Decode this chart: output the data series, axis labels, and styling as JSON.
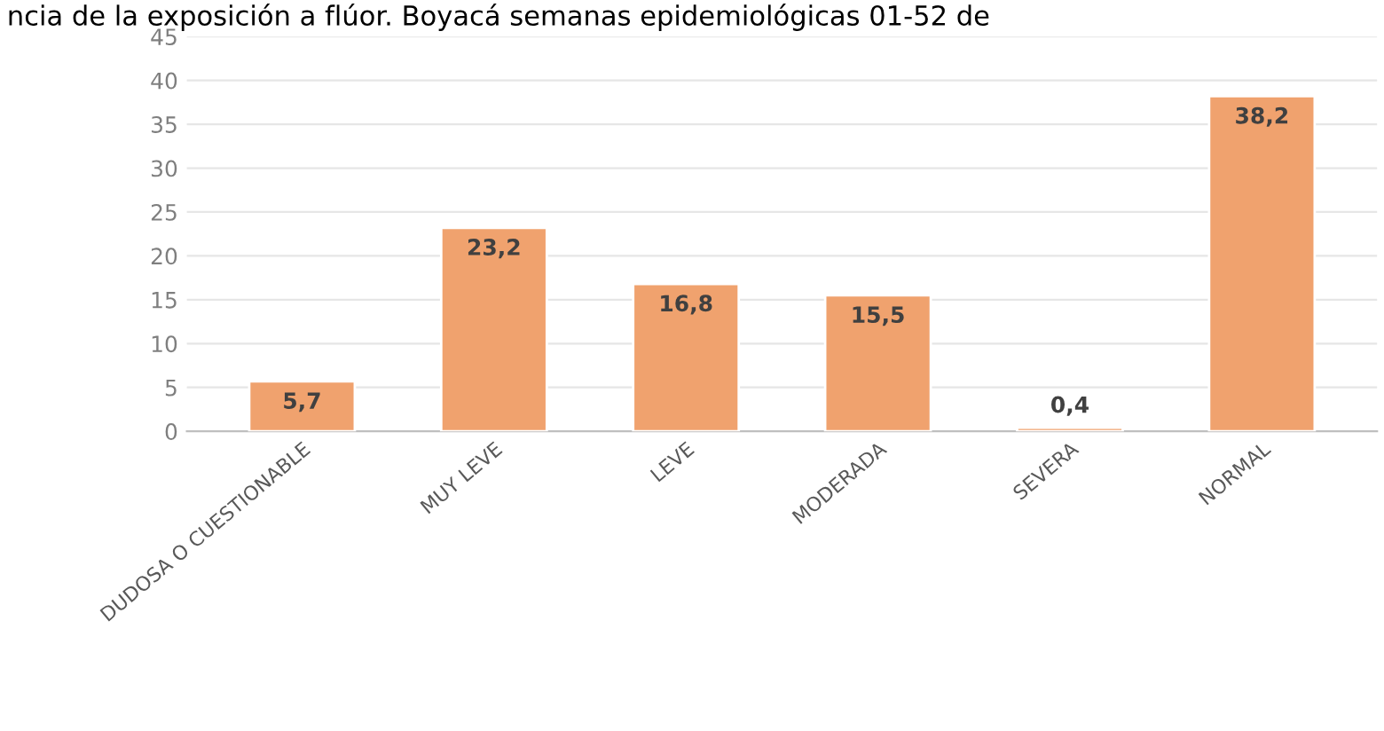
{
  "chart_data": {
    "type": "bar",
    "title": "ncia de la exposición a flúor. Boyacá semanas epidemiológicas 01-52 de",
    "categories": [
      "DUDOSA O CUESTIONABLE",
      "MUY LEVE",
      "LEVE",
      "MODERADA",
      "SEVERA",
      "NORMAL"
    ],
    "values": [
      5.7,
      23.2,
      16.8,
      15.5,
      0.4,
      38.2
    ],
    "value_labels": [
      "5,7",
      "23,2",
      "16,8",
      "15,5",
      "0,4",
      "38,2"
    ],
    "color": "#f0a26e",
    "ylim": [
      0,
      45
    ],
    "yticks": [
      0,
      5,
      10,
      15,
      20,
      25,
      30,
      35,
      40,
      45
    ],
    "grid": "y",
    "legend": false
  }
}
